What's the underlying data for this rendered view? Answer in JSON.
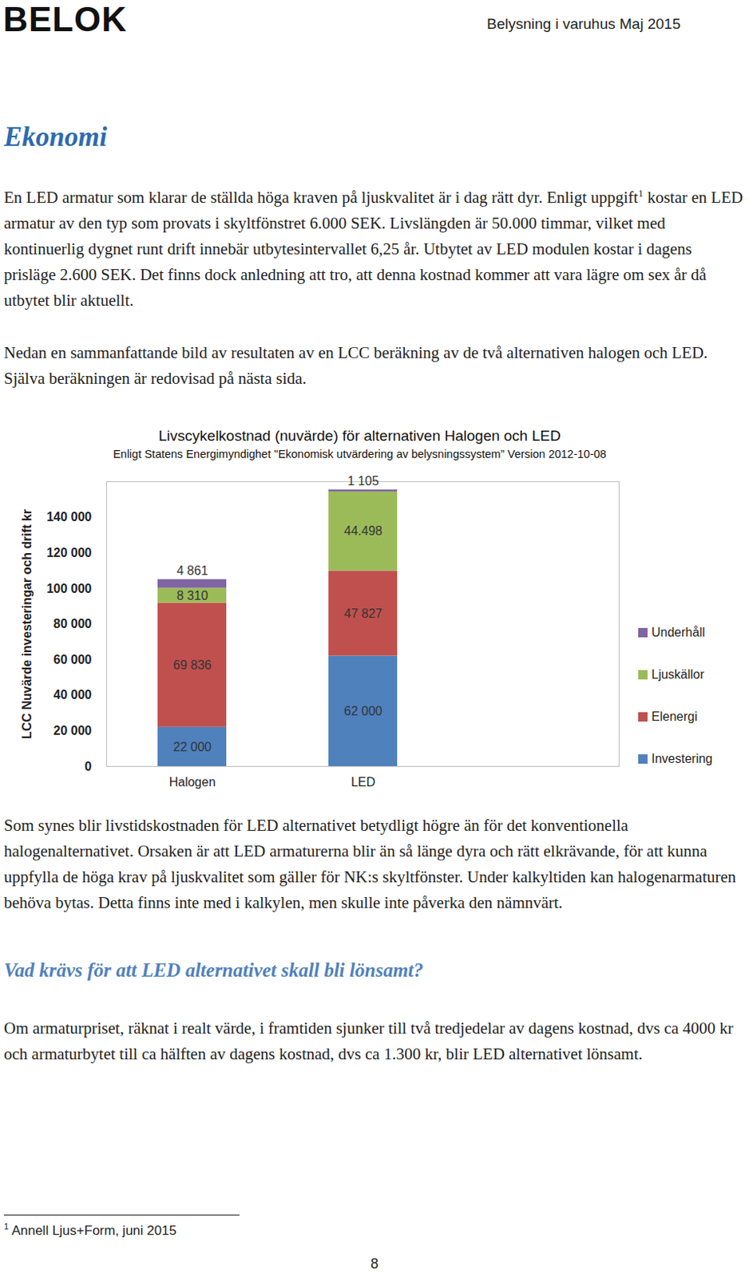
{
  "header": {
    "logo": "BELOK",
    "title": "Belysning i varuhus Maj 2015"
  },
  "heading": "Ekonomi",
  "paragraphs_before": [
    {
      "text": "En LED armatur som klarar de ställda höga kraven på ljuskvalitet är i dag rätt dyr. Enligt uppgift",
      "footnote_ref": "1",
      "text_after": " kostar en LED armatur av den typ som provats i skyltfönstret 6.000 SEK. Livslängden är 50.000 timmar, vilket med kontinuerlig dygnet runt drift innebär utbytesintervallet 6,25 år. Utbytet av LED modulen kostar i dagens prisläge 2.600 SEK. Det finns dock anledning att tro, att denna kostnad kommer att vara lägre om sex år då utbytet blir aktuellt."
    },
    {
      "text": "Nedan en sammanfattande bild av resultaten av en LCC beräkning av de två alternativen halogen och LED. Själva beräkningen är redovisad på nästa sida."
    }
  ],
  "chart_data": {
    "type": "bar",
    "title": "Livscykelkostnad (nuvärde) för alternativen Halogen och LED",
    "subtitle": "Enligt Statens Energimyndighet \"Ekonomisk utvärdering av belysningssystem” Version 2012-10-08",
    "y_label": "LCC Nuvärde investeringar och drift kr",
    "categories": [
      "Halogen",
      "LED"
    ],
    "series": [
      {
        "name": "Investering",
        "color": "#4f81bd",
        "values": [
          22000,
          62000
        ],
        "value_labels": [
          "22 000",
          "62 000"
        ]
      },
      {
        "name": "Elenergi",
        "color": "#c0504d",
        "values": [
          69836,
          47827
        ],
        "value_labels": [
          "69 836",
          "47 827"
        ]
      },
      {
        "name": "Ljuskällor",
        "color": "#9bbb59",
        "values": [
          8310,
          44498
        ],
        "value_labels": [
          "8 310",
          "44.498"
        ]
      },
      {
        "name": "Underhåll",
        "color": "#8064a2",
        "values": [
          4861,
          1105
        ],
        "value_labels": [
          "4 861",
          "1 105"
        ]
      }
    ],
    "ylim": [
      0,
      160000
    ],
    "yticks": [
      0,
      {
        "value": 20000,
        "label": "20 000"
      },
      {
        "value": 40000,
        "label": "40 000"
      },
      {
        "value": 60000,
        "label": "60 000"
      },
      {
        "value": 80000,
        "label": "80 000"
      },
      {
        "value": 100000,
        "label": "100 000"
      },
      {
        "value": 120000,
        "label": "120 000"
      },
      {
        "value": 140000,
        "label": "140 000"
      }
    ],
    "stacked": true,
    "data_labels": true,
    "legend": "right",
    "grid": false
  },
  "paragraphs_after": [
    {
      "text": "Som synes blir livstidskostnaden för LED alternativet betydligt högre än för det konventionella halogenalternativet. Orsaken är att LED armaturerna blir än så länge dyra och rätt elkrävande, för att kunna uppfylla de höga krav på ljuskvalitet som gäller för NK:s skyltfönster. Under kalkyltiden kan halogenarmaturen behöva bytas. Detta finns inte med i kalkylen, men skulle inte påverka den nämnvärt."
    }
  ],
  "subheading": "Vad krävs för att LED alternativet skall bli lönsamt?",
  "paragraphs_end": [
    {
      "text": "Om armaturpriset, räknat i realt värde, i framtiden sjunker till två tredjedelar av dagens kostnad, dvs ca 4000 kr och armaturbytet till ca hälften av dagens kostnad, dvs ca 1.300 kr, blir LED alternativet lönsamt."
    }
  ],
  "footnote": {
    "ref": "1",
    "text": "Annell Ljus+Form, juni 2015"
  },
  "page_number": "8"
}
